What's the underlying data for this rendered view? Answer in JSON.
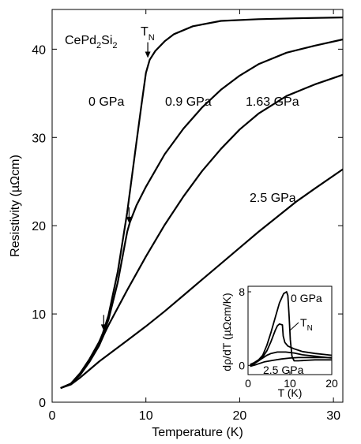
{
  "chart_data": [
    {
      "type": "line",
      "xlabel": "Temperature  (K)",
      "ylabel": "Resistivity  (µΩcm)",
      "xlim": [
        0,
        31
      ],
      "ylim": [
        0,
        44.5
      ],
      "xticks": [
        0,
        10,
        20,
        30
      ],
      "yticks": [
        0,
        10,
        20,
        30,
        40
      ],
      "compound": {
        "base": "CePd",
        "sub1": "2",
        "mid": "Si",
        "sub2": "2"
      },
      "tn_label": {
        "main": "T",
        "sub": "N"
      },
      "series": [
        {
          "name": "0 GPa",
          "points": [
            [
              0.9,
              1.6
            ],
            [
              2,
              2.1
            ],
            [
              3,
              3.3
            ],
            [
              4,
              4.9
            ],
            [
              5,
              6.8
            ],
            [
              5.4,
              7.8
            ],
            [
              6,
              9.8
            ],
            [
              7,
              14.8
            ],
            [
              8,
              21.5
            ],
            [
              9,
              29.5
            ],
            [
              9.5,
              33.5
            ],
            [
              10,
              37.3
            ],
            [
              10.4,
              38.8
            ],
            [
              11,
              39.8
            ],
            [
              12,
              40.9
            ],
            [
              13,
              41.7
            ],
            [
              15,
              42.6
            ],
            [
              18,
              43.2
            ],
            [
              22,
              43.4
            ],
            [
              26,
              43.5
            ],
            [
              31,
              43.6
            ]
          ]
        },
        {
          "name": "0.9 GPa",
          "points": [
            [
              0.9,
              1.6
            ],
            [
              2,
              2.1
            ],
            [
              3,
              3.3
            ],
            [
              4,
              4.9
            ],
            [
              5,
              6.8
            ],
            [
              5.5,
              7.9
            ],
            [
              6,
              9.3
            ],
            [
              7,
              13.6
            ],
            [
              8,
              19.3
            ],
            [
              8.3,
              20.4
            ],
            [
              9,
              22.3
            ],
            [
              10,
              24.4
            ],
            [
              12,
              28.1
            ],
            [
              14,
              31.0
            ],
            [
              16,
              33.4
            ],
            [
              18,
              35.4
            ],
            [
              20,
              37.0
            ],
            [
              22,
              38.3
            ],
            [
              25,
              39.6
            ],
            [
              28,
              40.4
            ],
            [
              31,
              41.1
            ]
          ]
        },
        {
          "name": "1.63 GPa",
          "points": [
            [
              0.9,
              1.6
            ],
            [
              2,
              2.1
            ],
            [
              3,
              3.1
            ],
            [
              4,
              4.6
            ],
            [
              5,
              6.4
            ],
            [
              5.5,
              7.6
            ],
            [
              6,
              8.7
            ],
            [
              8,
              12.7
            ],
            [
              10,
              16.5
            ],
            [
              12,
              20.1
            ],
            [
              14,
              23.3
            ],
            [
              16,
              26.2
            ],
            [
              18,
              28.7
            ],
            [
              20,
              30.9
            ],
            [
              22,
              32.7
            ],
            [
              25,
              34.7
            ],
            [
              28,
              36.0
            ],
            [
              31,
              37.1
            ]
          ]
        },
        {
          "name": "2.5 GPa",
          "points": [
            [
              0.9,
              1.6
            ],
            [
              2,
              2.0
            ],
            [
              3,
              2.8
            ],
            [
              4,
              3.7
            ],
            [
              5,
              4.6
            ],
            [
              6,
              5.4
            ],
            [
              8,
              7.0
            ],
            [
              10,
              8.6
            ],
            [
              12,
              10.3
            ],
            [
              14,
              12.1
            ],
            [
              16,
              13.9
            ],
            [
              18,
              15.7
            ],
            [
              20,
              17.5
            ],
            [
              22,
              19.3
            ],
            [
              24,
              21.0
            ],
            [
              26,
              22.7
            ],
            [
              28,
              24.2
            ],
            [
              31,
              26.4
            ]
          ]
        }
      ],
      "arrows": [
        {
          "x": 10.2,
          "y": 39.0
        },
        {
          "x": 8.2,
          "y": 20.3
        },
        {
          "x": 5.5,
          "y": 8.1
        }
      ]
    },
    {
      "type": "line",
      "subtype": "inset",
      "xlabel": "T  (K)",
      "ylabel": "dρ/dT  (µΩcm/K)",
      "xlim": [
        0,
        20
      ],
      "ylim": [
        -1,
        8.6
      ],
      "xticks": [
        0,
        10,
        20
      ],
      "yticks": [
        0,
        8
      ],
      "tn_label": {
        "main": "T",
        "sub": "N"
      },
      "series": [
        {
          "name": "0 GPa",
          "points": [
            [
              0.5,
              0.1
            ],
            [
              1.5,
              0.3
            ],
            [
              2.5,
              0.6
            ],
            [
              3.5,
              1.1
            ],
            [
              4.5,
              2.2
            ],
            [
              5.5,
              3.6
            ],
            [
              6.5,
              5.2
            ],
            [
              7.5,
              6.8
            ],
            [
              8.5,
              7.8
            ],
            [
              9.2,
              8.0
            ],
            [
              9.5,
              7.6
            ],
            [
              9.8,
              5.5
            ],
            [
              10.1,
              2.8
            ],
            [
              10.5,
              1.0
            ],
            [
              11,
              0.5
            ],
            [
              12,
              0.5
            ],
            [
              14,
              0.55
            ],
            [
              16,
              0.6
            ],
            [
              18,
              0.6
            ],
            [
              20,
              0.6
            ]
          ]
        },
        {
          "name": "0.9 GPa",
          "points": [
            [
              0.5,
              0.0
            ],
            [
              1.5,
              0.2
            ],
            [
              2.5,
              0.5
            ],
            [
              3.5,
              0.9
            ],
            [
              4.5,
              1.6
            ],
            [
              5.5,
              2.6
            ],
            [
              6.5,
              3.8
            ],
            [
              7,
              4.3
            ],
            [
              7.5,
              4.5
            ],
            [
              8.2,
              4.4
            ],
            [
              8.4,
              3.2
            ],
            [
              8.8,
              2.5
            ],
            [
              9.5,
              2.1
            ],
            [
              11,
              1.8
            ],
            [
              13,
              1.5
            ],
            [
              16,
              1.3
            ],
            [
              20,
              1.1
            ]
          ]
        },
        {
          "name": "1.63 GPa",
          "points": [
            [
              0.5,
              0.0
            ],
            [
              1.5,
              0.2
            ],
            [
              2.5,
              0.5
            ],
            [
              3.5,
              0.8
            ],
            [
              4.5,
              1.1
            ],
            [
              5.5,
              1.3
            ],
            [
              7,
              1.45
            ],
            [
              9,
              1.45
            ],
            [
              11,
              1.35
            ],
            [
              13,
              1.15
            ],
            [
              16,
              1.0
            ],
            [
              20,
              0.8
            ]
          ]
        },
        {
          "name": "2.5 GPa",
          "points": [
            [
              0.5,
              -0.1
            ],
            [
              2,
              0.1
            ],
            [
              4,
              0.4
            ],
            [
              6,
              0.55
            ],
            [
              8,
              0.7
            ],
            [
              10,
              0.8
            ],
            [
              12,
              0.85
            ],
            [
              14,
              0.85
            ],
            [
              16,
              0.85
            ],
            [
              18,
              0.85
            ],
            [
              20,
              0.85
            ]
          ]
        }
      ]
    }
  ]
}
